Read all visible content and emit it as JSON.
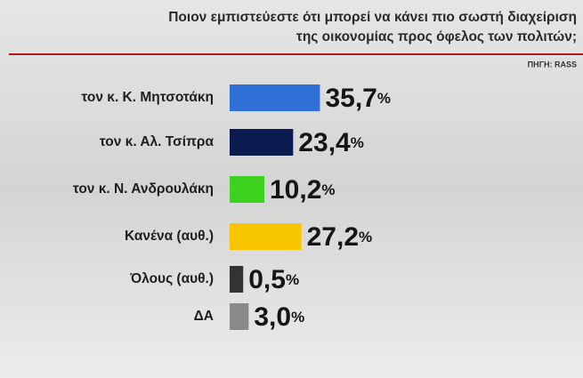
{
  "chart_data": {
    "type": "bar",
    "orientation": "horizontal",
    "title": [
      "Ποιον εμπιστεύεστε ότι μπορεί να κάνει πιο σωστή διαχείριση",
      "της οικονομίας προς όφελος των πολιτών;"
    ],
    "source": "ΠΗΓΗ: RASS",
    "categories": [
      "τον κ. Κ. Μητσοτάκη",
      "τον κ. Αλ. Τσίπρα",
      "τον κ. Ν. Ανδρουλάκη",
      "Κανένα (αυθ.)",
      "Όλους (αυθ.)",
      "ΔΑ"
    ],
    "values": [
      35.7,
      23.4,
      10.2,
      27.2,
      0.5,
      3.0
    ],
    "value_labels": [
      "35,7%",
      "23,4%",
      "10,2%",
      "27,2%",
      "0,5%",
      "3,0%"
    ],
    "colors": [
      "#2f6fd6",
      "#0b1a4f",
      "#3fd11f",
      "#f7c600",
      "#333333",
      "#8a8a8a"
    ]
  }
}
